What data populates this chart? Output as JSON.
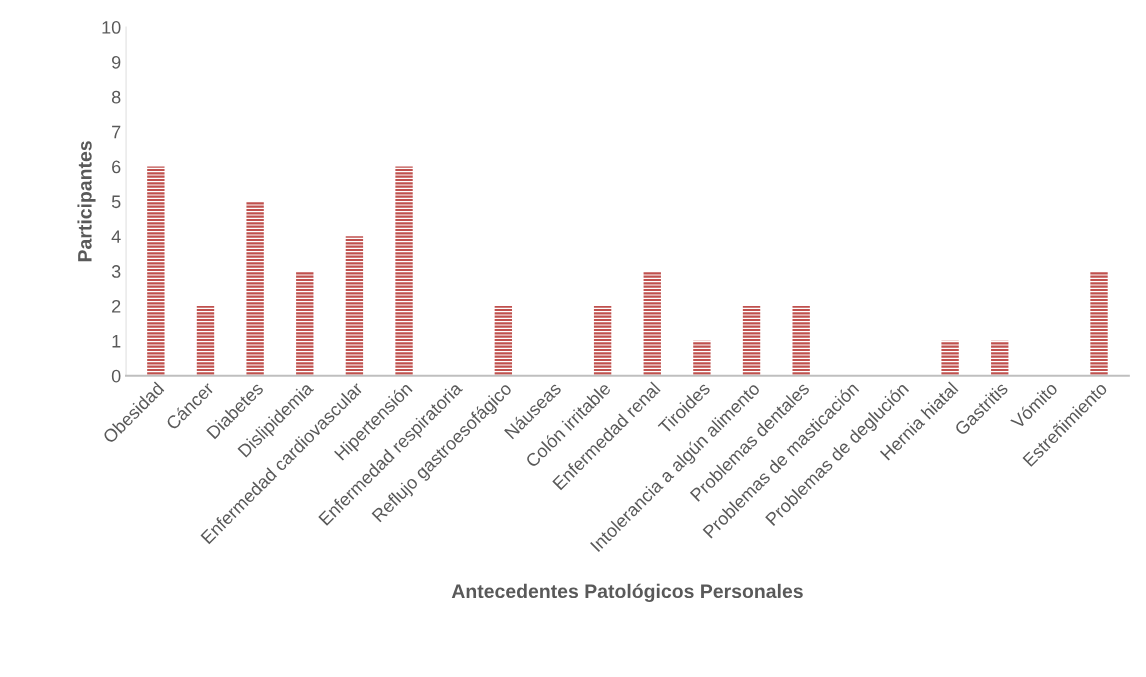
{
  "chart_data": {
    "type": "bar",
    "xlabel": "Antecedentes Patológicos Personales",
    "ylabel": "Participantes",
    "categories": [
      "Obesidad",
      "Cáncer",
      "Diabetes",
      "Dislipidemia",
      "Enfermedad cardiovascular",
      "Hipertensión",
      "Enfermedad respiratoria",
      "Reflujo gastroesofágico",
      "Náuseas",
      "Colón irritable",
      "Enfermedad renal",
      "Tiroides",
      "Intolerancia a algún alimento",
      "Problemas dentales",
      "Problemas de masticación",
      "Problemas de deglución",
      "Hernia hiatal",
      "Gastritis",
      "Vómito",
      "Estreñimiento"
    ],
    "values": [
      6,
      2,
      5,
      3,
      4,
      6,
      0,
      2,
      0,
      2,
      3,
      1,
      2,
      2,
      0,
      0,
      1,
      1,
      0,
      3
    ],
    "color": "#c0504d",
    "ylim": [
      0,
      10
    ],
    "yticks": [
      0,
      1,
      2,
      3,
      4,
      5,
      6,
      7,
      8,
      9,
      10
    ],
    "grid": false,
    "legend": false
  }
}
